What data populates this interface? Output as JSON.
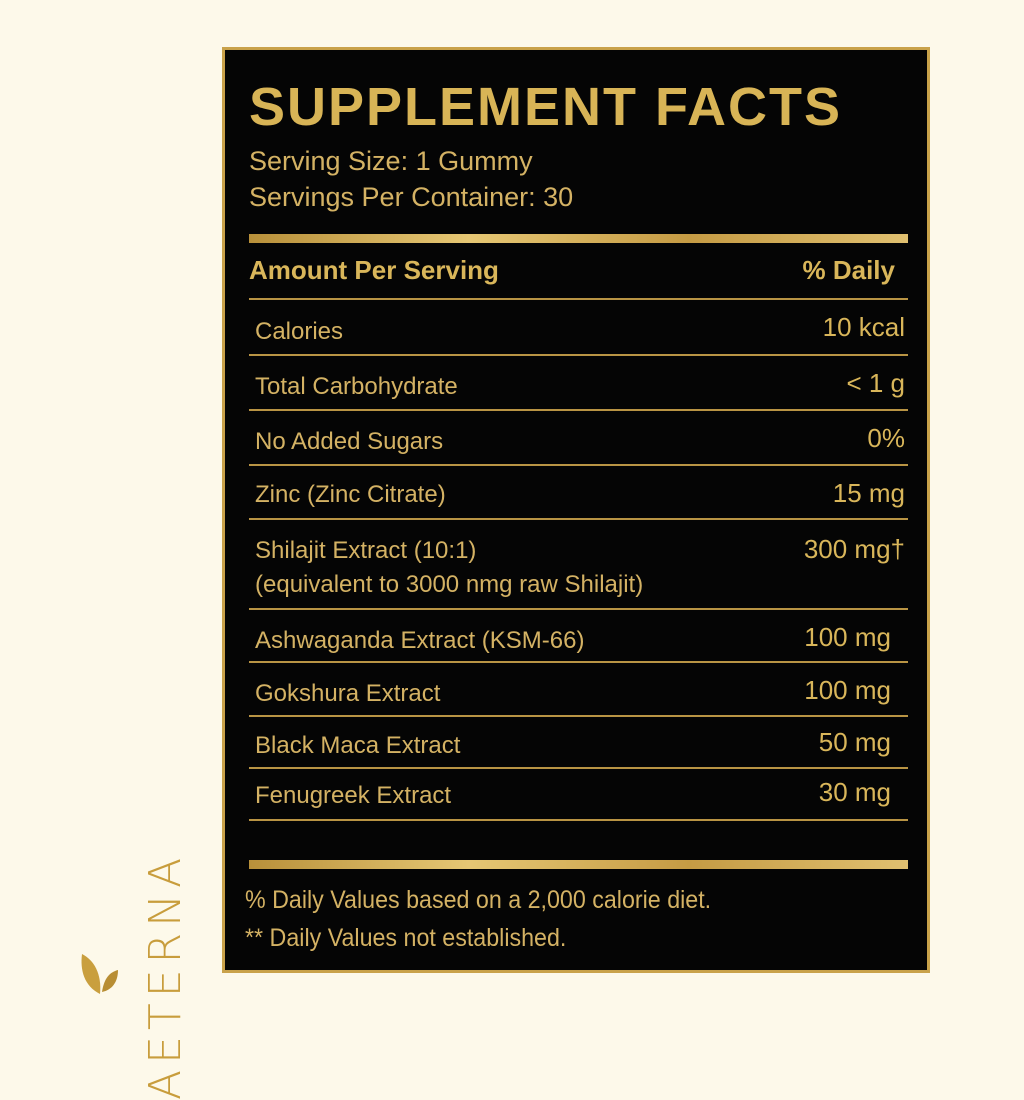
{
  "brand": {
    "name": "AETERNA",
    "icon": "leaf-icon"
  },
  "label": {
    "title": "SUPPLEMENT FACTS",
    "serving_size": "Serving Size: 1 Gummy",
    "servings_per_container": "Servings Per Container: 30",
    "header_left": "Amount Per Serving",
    "header_right": "% Daily",
    "rows": [
      {
        "name": "Calories",
        "value": "10 kcal"
      },
      {
        "name": "Total Carbohydrate",
        "value": "< 1 g"
      },
      {
        "name": "No Added Sugars",
        "value": "0%"
      },
      {
        "name": "Zinc (Zinc Citrate)",
        "value": "15 mg"
      },
      {
        "name": "Shilajit Extract (10:1)",
        "sub": "(equivalent to 3000 nmg raw Shilajit)",
        "value": "300 mg†"
      },
      {
        "name": "Ashwaganda Extract (KSM-66)",
        "value": "100 mg"
      },
      {
        "name": "Gokshura Extract",
        "value": "100 mg"
      },
      {
        "name": "Black Maca Extract",
        "value": "50 mg"
      },
      {
        "name": "Fenugreek Extract",
        "value": "30 mg"
      }
    ],
    "footnote_1": "% Daily Values based on a 2,000 calorie diet.",
    "footnote_2": "** Daily Values not established."
  },
  "colors": {
    "background": "#fdf9ea",
    "label": "#050505",
    "gold": "#d9b65a"
  }
}
